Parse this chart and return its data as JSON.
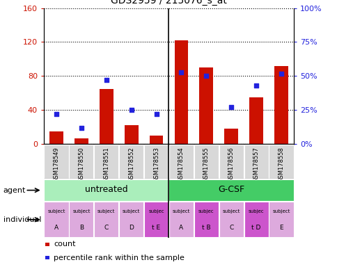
{
  "title": "GDS2959 / 215076_s_at",
  "samples": [
    "GSM178549",
    "GSM178550",
    "GSM178551",
    "GSM178552",
    "GSM178553",
    "GSM178554",
    "GSM178555",
    "GSM178556",
    "GSM178557",
    "GSM178558"
  ],
  "counts": [
    15,
    7,
    65,
    22,
    10,
    122,
    90,
    18,
    55,
    92
  ],
  "percentiles": [
    22,
    12,
    47,
    25,
    22,
    53,
    50,
    27,
    43,
    52
  ],
  "ylim_left": [
    0,
    160
  ],
  "ylim_right": [
    0,
    100
  ],
  "yticks_left": [
    0,
    40,
    80,
    120,
    160
  ],
  "yticks_right": [
    0,
    25,
    50,
    75,
    100
  ],
  "ytick_labels_left": [
    "0",
    "40",
    "80",
    "120",
    "160"
  ],
  "ytick_labels_right": [
    "0%",
    "25%",
    "50%",
    "75%",
    "100%"
  ],
  "bar_color": "#cc1100",
  "dot_color": "#2222dd",
  "agent_groups": [
    {
      "label": "untreated",
      "start": 0,
      "end": 5,
      "color": "#aaeebb"
    },
    {
      "label": "G-CSF",
      "start": 5,
      "end": 10,
      "color": "#44cc66"
    }
  ],
  "individual_labels": [
    [
      "subject",
      "A"
    ],
    [
      "subject",
      "B"
    ],
    [
      "subject",
      "C"
    ],
    [
      "subject",
      "D"
    ],
    [
      "subjec",
      "t E"
    ],
    [
      "subject",
      "A"
    ],
    [
      "subjec",
      "t B"
    ],
    [
      "subject",
      "C"
    ],
    [
      "subjec",
      "t D"
    ],
    [
      "subject",
      "E"
    ]
  ],
  "individual_highlight": [
    4,
    6,
    8
  ],
  "individual_bg_normal": "#ddaadd",
  "individual_bg_highlight": "#cc55cc",
  "bar_color_legend": "#cc1100",
  "dot_color_legend": "#2222dd",
  "agent_label": "agent",
  "individual_label": "individual",
  "legend_count": "count",
  "legend_percentile": "percentile rank within the sample",
  "tick_label_bg": "#d8d8d8",
  "separator_col": 5,
  "n_samples": 10
}
